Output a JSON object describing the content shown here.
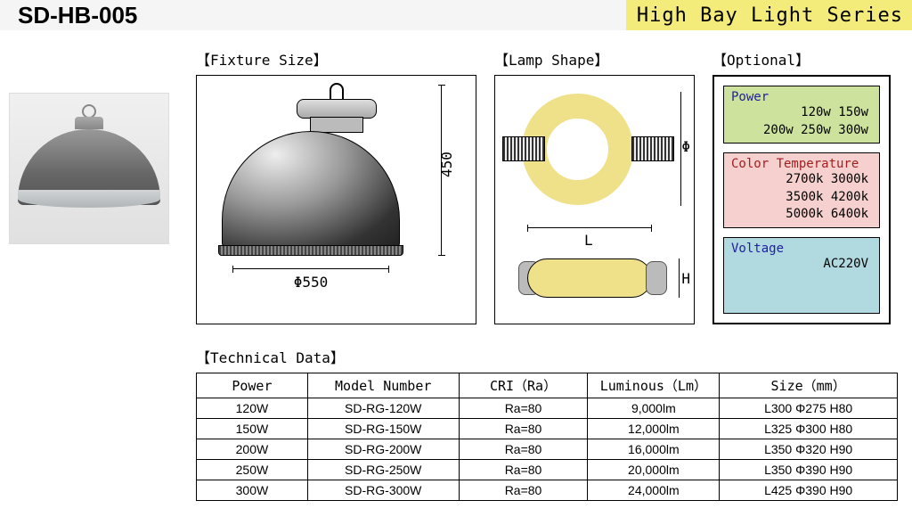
{
  "header": {
    "model": "SD-HB-005",
    "series": "High Bay Light Series"
  },
  "sections": {
    "fixture": "【Fixture Size】",
    "lamp": "【Lamp Shape】",
    "optional": "【Optional】",
    "technical": "【Technical Data】"
  },
  "fixture_size": {
    "dia_label": "Φ550",
    "height_label": "450",
    "diameter_mm": 550,
    "height_mm": 450
  },
  "lamp_shape": {
    "length_label": "L",
    "dia_label": "Φ",
    "height_label": "H"
  },
  "optional": {
    "power": {
      "title": "Power",
      "line1": "120w  150w",
      "line2": "200w  250w 300w",
      "bg": "#cde29c"
    },
    "ct": {
      "title": "Color Temperature",
      "line1": "2700k 3000k",
      "line2": "3500k 4200k",
      "line3": "5000k 6400k",
      "bg": "#f5d0ce"
    },
    "voltage": {
      "title": "Voltage",
      "value": "AC220V",
      "bg": "#b1d9e0"
    }
  },
  "table": {
    "columns": [
      "Power",
      "Model Number",
      "CRI（Ra）",
      "Luminous（Lm）",
      "Size（mm）"
    ],
    "rows": [
      [
        "120W",
        "SD-RG-120W",
        "Ra=80",
        "9,000lm",
        "L300   Φ275  H80"
      ],
      [
        "150W",
        "SD-RG-150W",
        "Ra=80",
        "12,000lm",
        "L325   Φ300  H80"
      ],
      [
        "200W",
        "SD-RG-200W",
        "Ra=80",
        "16,000lm",
        "L350   Φ320  H90"
      ],
      [
        "250W",
        "SD-RG-250W",
        "Ra=80",
        "20,000lm",
        "L350   Φ390  H90"
      ],
      [
        "300W",
        "SD-RG-300W",
        "Ra=80",
        "24,000lm",
        "L425   Φ390  H90"
      ]
    ]
  },
  "colors": {
    "header_right_bg": "#f3eb7a",
    "header_left_bg": "#f5f5f5",
    "lamp_tube": "#eee189",
    "border": "#000000"
  },
  "typography": {
    "title_fontsize": 26,
    "series_fontsize": 22,
    "label_fontsize": 16,
    "table_fontsize": 14
  }
}
